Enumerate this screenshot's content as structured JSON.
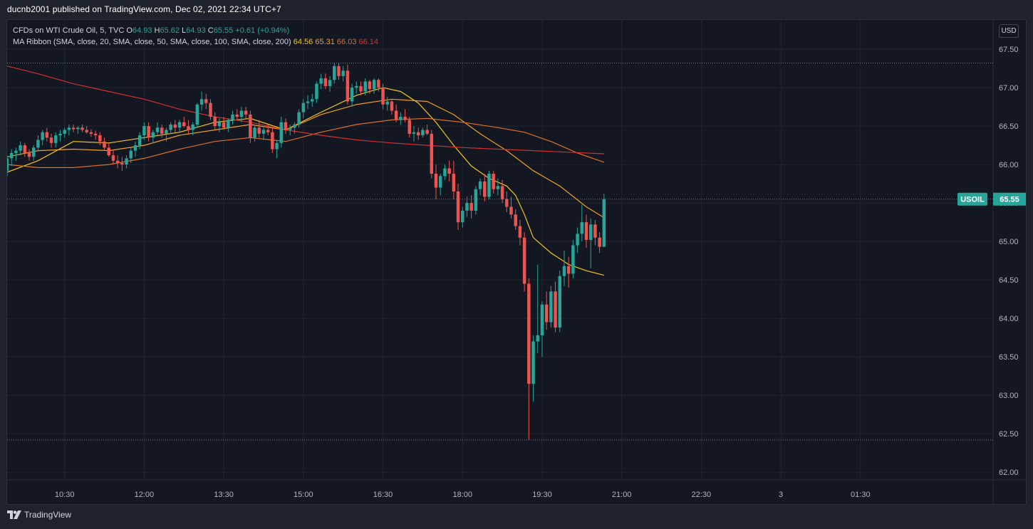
{
  "header": {
    "publisher_line": "ducnb2001 published on TradingView.com, Dec 02, 2021 22:34 UTC+7"
  },
  "legend": {
    "symbol_line": "CFDs on WTI Crude Oil, 5, TVC",
    "open_label": "O",
    "open": "64.93",
    "high_label": "H",
    "high": "65.62",
    "low_label": "L",
    "low": "64.93",
    "close_label": "C",
    "close": "65.55",
    "change": "+0.61 (+0.94%)",
    "ma_line": "MA Ribbon (SMA, close, 20, SMA, close, 50, SMA, close, 100, SMA, close, 200)",
    "ma_values": [
      "64.56",
      "65.31",
      "66.03",
      "66.14"
    ]
  },
  "currency": "USD",
  "footer": {
    "brand": "TradingView"
  },
  "colors": {
    "up": "#26a69a",
    "down": "#ef5350",
    "ma20": "#f5c518",
    "ma50": "#f0a020",
    "ma100": "#e07020",
    "ma200": "#d32f2f",
    "background": "#131722",
    "grid": "#1f2430"
  },
  "chart_data": {
    "type": "candlestick",
    "symbol_tag": "USOIL",
    "last_price": "65.55",
    "y_ticks": [
      "67.50",
      "67.00",
      "66.50",
      "66.00",
      "65.50",
      "65.00",
      "64.50",
      "64.00",
      "63.50",
      "63.00",
      "62.50",
      "62.00"
    ],
    "ylim": [
      61.9,
      67.88
    ],
    "x_ticks": [
      "10:30",
      "12:00",
      "13:30",
      "15:00",
      "16:30",
      "18:00",
      "19:30",
      "21:00",
      "22:30",
      "3",
      "01:30"
    ],
    "dotted_levels": [
      67.32,
      65.55,
      62.42
    ],
    "x_domain_minutes": [
      565,
      1680
    ],
    "candles": [
      [
        565,
        65.92,
        66.12,
        65.85,
        66.08
      ],
      [
        570,
        66.08,
        66.2,
        65.98,
        66.15
      ],
      [
        575,
        66.15,
        66.22,
        66.05,
        66.18
      ],
      [
        580,
        66.18,
        66.3,
        66.12,
        66.25
      ],
      [
        585,
        66.25,
        66.28,
        66.1,
        66.15
      ],
      [
        590,
        66.15,
        66.2,
        66.05,
        66.1
      ],
      [
        595,
        66.1,
        66.25,
        66.05,
        66.22
      ],
      [
        600,
        66.22,
        66.38,
        66.18,
        66.32
      ],
      [
        605,
        66.32,
        66.45,
        66.25,
        66.42
      ],
      [
        610,
        66.42,
        66.48,
        66.3,
        66.35
      ],
      [
        615,
        66.35,
        66.4,
        66.22,
        66.28
      ],
      [
        620,
        66.28,
        66.42,
        66.22,
        66.38
      ],
      [
        625,
        66.38,
        66.45,
        66.3,
        66.4
      ],
      [
        630,
        66.4,
        66.48,
        66.35,
        66.45
      ],
      [
        635,
        66.45,
        66.52,
        66.38,
        66.48
      ],
      [
        640,
        66.48,
        66.52,
        66.42,
        66.46
      ],
      [
        645,
        66.46,
        66.5,
        66.4,
        66.48
      ],
      [
        650,
        66.48,
        66.52,
        66.42,
        66.45
      ],
      [
        655,
        66.45,
        66.5,
        66.4,
        66.42
      ],
      [
        660,
        66.42,
        66.46,
        66.36,
        66.4
      ],
      [
        665,
        66.4,
        66.44,
        66.32,
        66.38
      ],
      [
        670,
        66.38,
        66.42,
        66.25,
        66.3
      ],
      [
        675,
        66.3,
        66.35,
        66.18,
        66.22
      ],
      [
        680,
        66.22,
        66.28,
        66.1,
        66.12
      ],
      [
        685,
        66.12,
        66.18,
        66.0,
        66.05
      ],
      [
        690,
        66.05,
        66.12,
        65.95,
        66.02
      ],
      [
        695,
        66.02,
        66.1,
        65.92,
        66.0
      ],
      [
        700,
        66.0,
        66.12,
        65.95,
        66.08
      ],
      [
        705,
        66.08,
        66.22,
        66.02,
        66.18
      ],
      [
        710,
        66.18,
        66.3,
        66.1,
        66.25
      ],
      [
        715,
        66.25,
        66.42,
        66.2,
        66.38
      ],
      [
        720,
        66.38,
        66.55,
        66.32,
        66.5
      ],
      [
        725,
        66.5,
        66.55,
        66.3,
        66.35
      ],
      [
        730,
        66.35,
        66.45,
        66.28,
        66.42
      ],
      [
        735,
        66.42,
        66.55,
        66.38,
        66.48
      ],
      [
        740,
        66.48,
        66.52,
        66.35,
        66.4
      ],
      [
        745,
        66.4,
        66.48,
        66.3,
        66.45
      ],
      [
        750,
        66.45,
        66.55,
        66.4,
        66.52
      ],
      [
        755,
        66.52,
        66.58,
        66.42,
        66.48
      ],
      [
        760,
        66.48,
        66.58,
        66.42,
        66.55
      ],
      [
        765,
        66.55,
        66.62,
        66.48,
        66.5
      ],
      [
        770,
        66.5,
        66.58,
        66.4,
        66.45
      ],
      [
        775,
        66.45,
        66.55,
        66.38,
        66.52
      ],
      [
        780,
        66.52,
        66.8,
        66.48,
        66.78
      ],
      [
        785,
        66.78,
        66.95,
        66.7,
        66.85
      ],
      [
        790,
        66.85,
        66.92,
        66.72,
        66.8
      ],
      [
        795,
        66.8,
        66.85,
        66.58,
        66.62
      ],
      [
        800,
        66.62,
        66.68,
        66.45,
        66.5
      ],
      [
        805,
        66.5,
        66.6,
        66.42,
        66.55
      ],
      [
        810,
        66.55,
        66.62,
        66.45,
        66.48
      ],
      [
        815,
        66.48,
        66.6,
        66.42,
        66.58
      ],
      [
        820,
        66.58,
        66.7,
        66.52,
        66.65
      ],
      [
        825,
        66.65,
        66.72,
        66.58,
        66.62
      ],
      [
        830,
        66.62,
        66.75,
        66.55,
        66.7
      ],
      [
        835,
        66.7,
        66.75,
        66.6,
        66.65
      ],
      [
        840,
        66.65,
        66.7,
        66.28,
        66.35
      ],
      [
        845,
        66.35,
        66.52,
        66.3,
        66.48
      ],
      [
        850,
        66.48,
        66.58,
        66.35,
        66.4
      ],
      [
        855,
        66.4,
        66.48,
        66.32,
        66.45
      ],
      [
        860,
        66.45,
        66.52,
        66.38,
        66.42
      ],
      [
        865,
        66.42,
        66.48,
        66.15,
        66.2
      ],
      [
        870,
        66.2,
        66.32,
        66.08,
        66.28
      ],
      [
        875,
        66.28,
        66.62,
        66.22,
        66.55
      ],
      [
        880,
        66.55,
        66.6,
        66.4,
        66.45
      ],
      [
        885,
        66.45,
        66.52,
        66.38,
        66.48
      ],
      [
        890,
        66.48,
        66.55,
        66.4,
        66.52
      ],
      [
        895,
        66.52,
        66.72,
        66.48,
        66.68
      ],
      [
        900,
        66.68,
        66.85,
        66.6,
        66.8
      ],
      [
        905,
        66.8,
        66.9,
        66.72,
        66.82
      ],
      [
        910,
        66.82,
        66.92,
        66.75,
        66.85
      ],
      [
        915,
        66.85,
        67.08,
        66.8,
        67.05
      ],
      [
        920,
        67.05,
        67.18,
        66.98,
        67.12
      ],
      [
        925,
        67.12,
        67.18,
        66.98,
        67.02
      ],
      [
        930,
        67.02,
        67.15,
        66.95,
        67.1
      ],
      [
        935,
        67.1,
        67.32,
        67.05,
        67.28
      ],
      [
        940,
        67.28,
        67.32,
        67.1,
        67.15
      ],
      [
        945,
        67.15,
        67.28,
        67.08,
        67.22
      ],
      [
        950,
        67.22,
        67.3,
        66.78,
        66.82
      ],
      [
        955,
        66.82,
        67.05,
        66.75,
        67.0
      ],
      [
        960,
        67.0,
        67.08,
        66.92,
        67.02
      ],
      [
        965,
        67.02,
        67.08,
        66.9,
        66.95
      ],
      [
        970,
        66.95,
        67.12,
        66.9,
        67.08
      ],
      [
        975,
        67.08,
        67.1,
        66.92,
        66.98
      ],
      [
        980,
        66.98,
        67.12,
        66.92,
        67.1
      ],
      [
        985,
        67.1,
        67.12,
        66.95,
        67.0
      ],
      [
        990,
        67.0,
        67.05,
        66.72,
        66.78
      ],
      [
        995,
        66.78,
        66.88,
        66.7,
        66.82
      ],
      [
        1000,
        66.82,
        66.85,
        66.65,
        66.7
      ],
      [
        1005,
        66.7,
        66.78,
        66.55,
        66.58
      ],
      [
        1010,
        66.58,
        66.68,
        66.52,
        66.62
      ],
      [
        1015,
        66.62,
        66.72,
        66.55,
        66.58
      ],
      [
        1020,
        66.58,
        66.62,
        66.35,
        66.4
      ],
      [
        1025,
        66.4,
        66.5,
        66.3,
        66.42
      ],
      [
        1030,
        66.42,
        66.48,
        66.32,
        66.38
      ],
      [
        1035,
        66.38,
        66.48,
        66.35,
        66.45
      ],
      [
        1040,
        66.45,
        66.52,
        66.38,
        66.4
      ],
      [
        1045,
        66.4,
        66.45,
        65.82,
        65.88
      ],
      [
        1050,
        65.88,
        66.0,
        65.55,
        65.7
      ],
      [
        1055,
        65.7,
        65.88,
        65.6,
        65.85
      ],
      [
        1060,
        65.85,
        66.0,
        65.8,
        65.95
      ],
      [
        1065,
        65.95,
        66.05,
        65.78,
        65.88
      ],
      [
        1070,
        65.88,
        66.05,
        65.55,
        65.65
      ],
      [
        1075,
        65.65,
        65.75,
        65.15,
        65.25
      ],
      [
        1080,
        65.25,
        65.45,
        65.18,
        65.4
      ],
      [
        1085,
        65.4,
        65.58,
        65.32,
        65.5
      ],
      [
        1090,
        65.5,
        65.6,
        65.3,
        65.4
      ],
      [
        1095,
        65.4,
        65.72,
        65.35,
        65.68
      ],
      [
        1100,
        65.68,
        65.82,
        65.6,
        65.78
      ],
      [
        1105,
        65.78,
        65.88,
        65.52,
        65.58
      ],
      [
        1110,
        65.58,
        65.92,
        65.55,
        65.88
      ],
      [
        1115,
        65.88,
        65.92,
        65.62,
        65.68
      ],
      [
        1120,
        65.68,
        65.82,
        65.6,
        65.72
      ],
      [
        1125,
        65.72,
        65.8,
        65.5,
        65.55
      ],
      [
        1130,
        65.55,
        65.65,
        65.38,
        65.45
      ],
      [
        1135,
        65.45,
        65.58,
        65.3,
        65.35
      ],
      [
        1140,
        65.35,
        65.42,
        65.15,
        65.2
      ],
      [
        1145,
        65.2,
        65.28,
        64.95,
        65.05
      ],
      [
        1150,
        65.05,
        65.12,
        64.35,
        64.45
      ],
      [
        1155,
        64.45,
        64.52,
        62.42,
        63.15
      ],
      [
        1160,
        63.15,
        63.78,
        62.92,
        63.7
      ],
      [
        1165,
        63.7,
        64.7,
        63.55,
        63.78
      ],
      [
        1170,
        63.78,
        64.22,
        63.5,
        64.18
      ],
      [
        1175,
        64.18,
        64.35,
        63.85,
        63.95
      ],
      [
        1180,
        63.95,
        64.42,
        63.88,
        64.35
      ],
      [
        1185,
        64.35,
        64.48,
        63.82,
        63.88
      ],
      [
        1190,
        63.88,
        64.62,
        63.82,
        64.55
      ],
      [
        1195,
        64.55,
        64.88,
        64.42,
        64.68
      ],
      [
        1200,
        64.68,
        64.8,
        64.4,
        64.58
      ],
      [
        1205,
        64.58,
        65.02,
        64.52,
        64.95
      ],
      [
        1210,
        64.95,
        65.18,
        64.85,
        65.1
      ],
      [
        1215,
        65.1,
        65.48,
        65.0,
        65.25
      ],
      [
        1220,
        65.25,
        65.35,
        64.92,
        65.02
      ],
      [
        1225,
        65.02,
        65.3,
        64.65,
        65.22
      ],
      [
        1230,
        65.22,
        65.28,
        64.95,
        65.05
      ],
      [
        1235,
        65.05,
        65.12,
        64.85,
        64.93
      ],
      [
        1240,
        64.93,
        65.62,
        64.93,
        65.55
      ]
    ],
    "ma_series": {
      "ma20": [
        [
          565,
          65.9
        ],
        [
          600,
          66.05
        ],
        [
          640,
          66.3
        ],
        [
          680,
          66.28
        ],
        [
          720,
          66.35
        ],
        [
          760,
          66.42
        ],
        [
          800,
          66.55
        ],
        [
          840,
          66.6
        ],
        [
          880,
          66.45
        ],
        [
          920,
          66.68
        ],
        [
          960,
          66.9
        ],
        [
          990,
          67.0
        ],
        [
          1010,
          66.95
        ],
        [
          1030,
          66.8
        ],
        [
          1050,
          66.55
        ],
        [
          1070,
          66.25
        ],
        [
          1090,
          65.98
        ],
        [
          1110,
          65.82
        ],
        [
          1130,
          65.72
        ],
        [
          1140,
          65.6
        ],
        [
          1150,
          65.35
        ],
        [
          1160,
          65.05
        ],
        [
          1180,
          64.85
        ],
        [
          1200,
          64.7
        ],
        [
          1220,
          64.62
        ],
        [
          1240,
          64.56
        ]
      ],
      "ma50": [
        [
          565,
          66.1
        ],
        [
          600,
          66.18
        ],
        [
          640,
          66.2
        ],
        [
          680,
          66.18
        ],
        [
          720,
          66.25
        ],
        [
          760,
          66.38
        ],
        [
          800,
          66.45
        ],
        [
          840,
          66.52
        ],
        [
          880,
          66.45
        ],
        [
          920,
          66.65
        ],
        [
          960,
          66.78
        ],
        [
          1000,
          66.85
        ],
        [
          1040,
          66.82
        ],
        [
          1070,
          66.65
        ],
        [
          1100,
          66.4
        ],
        [
          1130,
          66.18
        ],
        [
          1160,
          65.92
        ],
        [
          1190,
          65.72
        ],
        [
          1220,
          65.45
        ],
        [
          1240,
          65.31
        ]
      ],
      "ma100": [
        [
          565,
          66.0
        ],
        [
          600,
          65.96
        ],
        [
          640,
          65.96
        ],
        [
          680,
          66.0
        ],
        [
          720,
          66.08
        ],
        [
          760,
          66.2
        ],
        [
          800,
          66.3
        ],
        [
          840,
          66.35
        ],
        [
          880,
          66.3
        ],
        [
          920,
          66.42
        ],
        [
          960,
          66.52
        ],
        [
          1000,
          66.58
        ],
        [
          1040,
          66.6
        ],
        [
          1080,
          66.55
        ],
        [
          1120,
          66.48
        ],
        [
          1150,
          66.42
        ],
        [
          1180,
          66.3
        ],
        [
          1210,
          66.15
        ],
        [
          1240,
          66.03
        ]
      ],
      "ma200": [
        [
          565,
          67.28
        ],
        [
          600,
          67.18
        ],
        [
          640,
          67.05
        ],
        [
          680,
          66.95
        ],
        [
          720,
          66.85
        ],
        [
          760,
          66.72
        ],
        [
          800,
          66.62
        ],
        [
          840,
          66.55
        ],
        [
          880,
          66.45
        ],
        [
          920,
          66.38
        ],
        [
          960,
          66.32
        ],
        [
          1000,
          66.28
        ],
        [
          1040,
          66.25
        ],
        [
          1080,
          66.22
        ],
        [
          1120,
          66.2
        ],
        [
          1160,
          66.18
        ],
        [
          1200,
          66.16
        ],
        [
          1240,
          66.14
        ]
      ]
    }
  }
}
